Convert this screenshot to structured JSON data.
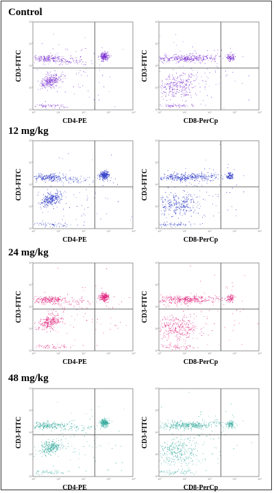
{
  "groups": [
    {
      "label": "Control"
    },
    {
      "label": "12 mg/kg"
    },
    {
      "label": "24 mg/kg"
    },
    {
      "label": "48 mg/kg"
    }
  ],
  "axes": {
    "y_label": "CD3-FITC",
    "x_labels": [
      "CD4-PE",
      "CD8-PerCp"
    ],
    "scale": "log",
    "tick_labels": [
      "10⁰",
      "10¹",
      "10²",
      "10³",
      "10⁴"
    ]
  },
  "colors": {
    "Control": "#7a2fd0",
    "12 mg/kg": "#2330c4",
    "24 mg/kg": "#e0207a",
    "48 mg/kg": "#2fa89a",
    "gate_line": "#555555",
    "frame": "#333333"
  },
  "chart_data": [
    {
      "type": "scatter",
      "group": "Control",
      "xlabel": "CD4-PE",
      "ylabel": "CD3-FITC",
      "xscale": "log",
      "yscale": "log",
      "xlim": [
        1,
        10000
      ],
      "ylim": [
        1,
        10000
      ],
      "gate": {
        "x": 300,
        "y": 80
      }
    },
    {
      "type": "scatter",
      "group": "Control",
      "xlabel": "CD8-PerCp",
      "ylabel": "CD3-FITC",
      "xscale": "log",
      "yscale": "log",
      "xlim": [
        1,
        10000
      ],
      "ylim": [
        1,
        10000
      ],
      "gate": {
        "x": 300,
        "y": 80
      }
    },
    {
      "type": "scatter",
      "group": "12 mg/kg",
      "xlabel": "CD4-PE",
      "ylabel": "CD3-FITC",
      "xscale": "log",
      "yscale": "log",
      "xlim": [
        1,
        10000
      ],
      "ylim": [
        1,
        10000
      ],
      "gate": {
        "x": 300,
        "y": 80
      }
    },
    {
      "type": "scatter",
      "group": "12 mg/kg",
      "xlabel": "CD8-PerCp",
      "ylabel": "CD3-FITC",
      "xscale": "log",
      "yscale": "log",
      "xlim": [
        1,
        10000
      ],
      "ylim": [
        1,
        10000
      ],
      "gate": {
        "x": 300,
        "y": 80
      }
    },
    {
      "type": "scatter",
      "group": "24 mg/kg",
      "xlabel": "CD4-PE",
      "ylabel": "CD3-FITC",
      "xscale": "log",
      "yscale": "log",
      "xlim": [
        1,
        10000
      ],
      "ylim": [
        1,
        10000
      ],
      "gate": {
        "x": 300,
        "y": 80
      }
    },
    {
      "type": "scatter",
      "group": "24 mg/kg",
      "xlabel": "CD8-PerCp",
      "ylabel": "CD3-FITC",
      "xscale": "log",
      "yscale": "log",
      "xlim": [
        1,
        10000
      ],
      "ylim": [
        1,
        10000
      ],
      "gate": {
        "x": 300,
        "y": 80
      }
    },
    {
      "type": "scatter",
      "group": "48 mg/kg",
      "xlabel": "CD4-PE",
      "ylabel": "CD3-FITC",
      "xscale": "log",
      "yscale": "log",
      "xlim": [
        1,
        10000
      ],
      "ylim": [
        1,
        10000
      ],
      "gate": {
        "x": 300,
        "y": 80
      }
    },
    {
      "type": "scatter",
      "group": "48 mg/kg",
      "xlabel": "CD8-PerCp",
      "ylabel": "CD3-FITC",
      "xscale": "log",
      "yscale": "log",
      "xlim": [
        1,
        10000
      ],
      "ylim": [
        1,
        10000
      ],
      "gate": {
        "x": 300,
        "y": 80
      }
    }
  ]
}
